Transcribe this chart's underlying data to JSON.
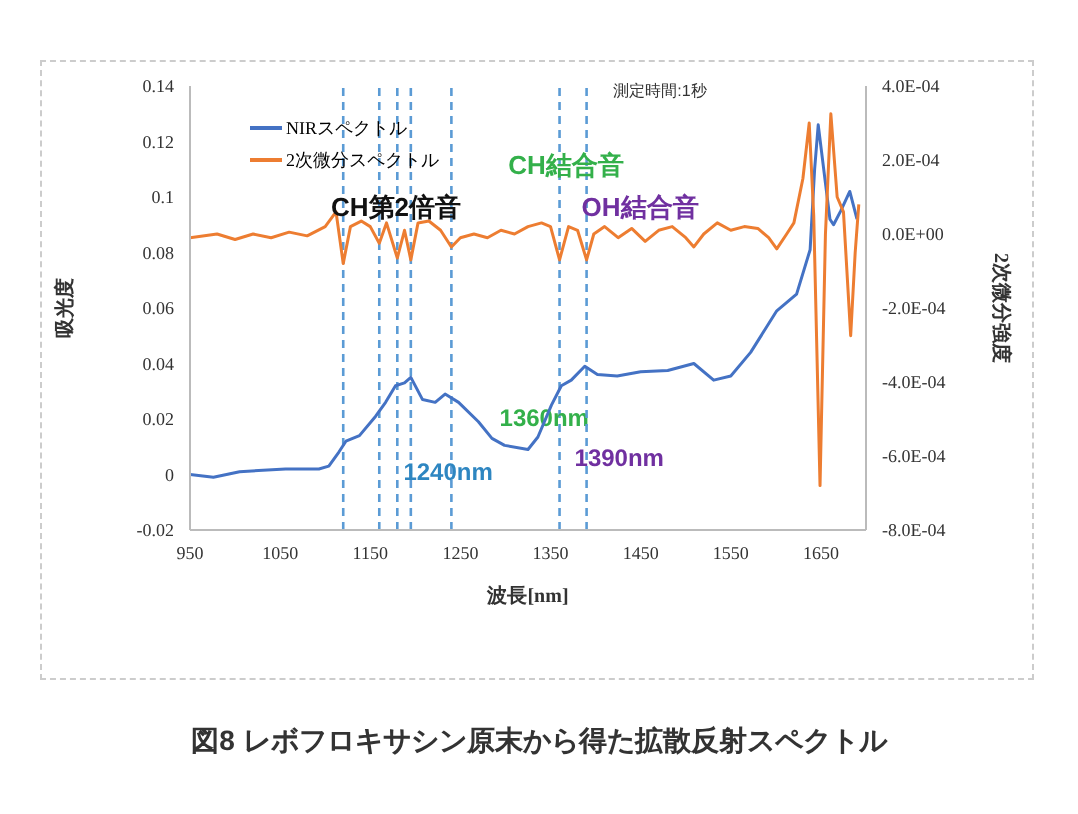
{
  "chart_data": {
    "type": "line",
    "title": "図8 レボフロキサシン原末から得た拡散反射スペクトル",
    "xlabel": "波長[nm]",
    "ylabel": "吸光度",
    "y2label": "2次微分強度",
    "annotations": [
      "測定時間:1秒",
      "CH第2倍音",
      "CH結合音",
      "OH結合音"
    ],
    "xlim": [
      950,
      1700
    ],
    "xticks": [
      950,
      1050,
      1150,
      1250,
      1350,
      1450,
      1550,
      1650
    ],
    "ylim": [
      -0.02,
      0.14
    ],
    "yticks": [
      -0.02,
      0,
      0.02,
      0.04,
      0.06,
      0.08,
      0.1,
      0.12,
      0.14
    ],
    "y2lim": [
      -0.0008,
      0.0004
    ],
    "y2ticks": [
      {
        "value": -0.0008,
        "label": "-8.0E-04"
      },
      {
        "value": -0.0006,
        "label": "-6.0E-04"
      },
      {
        "value": -0.0004,
        "label": "-4.0E-04"
      },
      {
        "value": -0.0002,
        "label": "-2.0E-04"
      },
      {
        "value": 0,
        "label": "0.0E+00"
      },
      {
        "value": 0.0002,
        "label": "2.0E-04"
      },
      {
        "value": 0.0004,
        "label": "4.0E-04"
      }
    ],
    "legend": "top left",
    "grid": false,
    "marker": "none",
    "line_style": "solid",
    "ref_lines": [
      {
        "axis": "x",
        "value": 1120,
        "label": null,
        "color": "#5b9bd5",
        "line_style": "dashed"
      },
      {
        "axis": "x",
        "value": 1160,
        "label": null,
        "color": "#5b9bd5",
        "line_style": "dashed"
      },
      {
        "axis": "x",
        "value": 1180,
        "label": null,
        "color": "#5b9bd5",
        "line_style": "dashed"
      },
      {
        "axis": "x",
        "value": 1195,
        "label": null,
        "color": "#5b9bd5",
        "line_style": "dashed"
      },
      {
        "axis": "x",
        "value": 1240,
        "label": "1240nm",
        "color": "#5b9bd5",
        "line_style": "dashed"
      },
      {
        "axis": "x",
        "value": 1360,
        "label": "1360nm",
        "color": "#5b9bd5",
        "line_style": "dashed"
      },
      {
        "axis": "x",
        "value": 1390,
        "label": "1390nm",
        "color": "#5b9bd5",
        "line_style": "dashed"
      }
    ],
    "series": [
      {
        "name": "NIRスペクトル",
        "color": "#4472c4",
        "x": [
          950,
          976,
          1005,
          1056,
          1093,
          1104,
          1115,
          1123,
          1138,
          1156,
          1167,
          1178,
          1188,
          1195,
          1208,
          1222,
          1233,
          1248,
          1270,
          1285,
          1299,
          1325,
          1336,
          1351,
          1362,
          1373,
          1388,
          1402,
          1424,
          1450,
          1480,
          1509,
          1531,
          1550,
          1572,
          1601,
          1623,
          1638,
          1643,
          1647,
          1655,
          1660,
          1664,
          1672,
          1682,
          1690
        ],
        "values": [
          0,
          -0.001,
          0.001,
          0.002,
          0.002,
          0.003,
          0.008,
          0.012,
          0.014,
          0.021,
          0.026,
          0.032,
          0.033,
          0.035,
          0.027,
          0.026,
          0.029,
          0.026,
          0.019,
          0.013,
          0.0105,
          0.009,
          0.0135,
          0.025,
          0.032,
          0.034,
          0.039,
          0.036,
          0.0355,
          0.037,
          0.0375,
          0.04,
          0.034,
          0.0355,
          0.044,
          0.059,
          0.065,
          0.081,
          0.11,
          0.126,
          0.105,
          0.092,
          0.09,
          0.095,
          0.102,
          0.092
        ]
      },
      {
        "name": "2次微分スペクトル",
        "color": "#ed7d31",
        "axis": "y2",
        "x": [
          950,
          980,
          1000,
          1020,
          1040,
          1060,
          1080,
          1100,
          1112,
          1120,
          1128,
          1140,
          1150,
          1160,
          1168,
          1180,
          1188,
          1195,
          1203,
          1215,
          1228,
          1240,
          1250,
          1265,
          1280,
          1295,
          1310,
          1325,
          1340,
          1350,
          1360,
          1370,
          1380,
          1390,
          1398,
          1410,
          1425,
          1440,
          1455,
          1470,
          1485,
          1500,
          1509,
          1520,
          1535,
          1550,
          1565,
          1580,
          1592,
          1601,
          1612,
          1620,
          1630,
          1637,
          1642,
          1649,
          1655,
          1661,
          1668,
          1675,
          1683,
          1688,
          1692
        ],
        "values": [
          -1e-05,
          0,
          -1.5e-05,
          0,
          -1e-05,
          5e-06,
          -5e-06,
          2e-05,
          6e-05,
          -8e-05,
          2e-05,
          3.5e-05,
          2e-05,
          -2.5e-05,
          3e-05,
          -6.5e-05,
          1e-05,
          -7e-05,
          3e-05,
          3.5e-05,
          1e-05,
          -3.5e-05,
          -1e-05,
          0,
          -1e-05,
          1e-05,
          0,
          2e-05,
          3e-05,
          2e-05,
          -7e-05,
          2e-05,
          1e-05,
          -7e-05,
          0,
          2e-05,
          -1e-05,
          1.5e-05,
          -2e-05,
          1e-05,
          2e-05,
          -1e-05,
          -3.5e-05,
          0,
          3e-05,
          1e-05,
          2e-05,
          1.5e-05,
          -1e-05,
          -4e-05,
          0,
          3e-05,
          0.00015,
          0.0003,
          5e-05,
          -0.00068,
          0,
          0.000325,
          0.0001,
          6e-05,
          -0.000275,
          -5e-05,
          8e-05
        ]
      }
    ]
  }
}
